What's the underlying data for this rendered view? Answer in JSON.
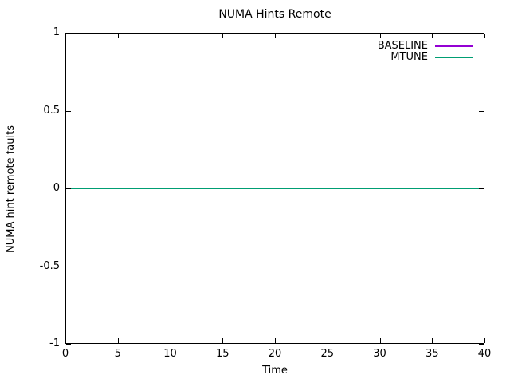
{
  "chart_data": {
    "type": "line",
    "title": "NUMA Hints Remote",
    "xlabel": "Time",
    "ylabel": "NUMA hint remote faults",
    "xlim": [
      0,
      40
    ],
    "ylim": [
      -1,
      1
    ],
    "xticks": [
      0,
      5,
      10,
      15,
      20,
      25,
      30,
      35,
      40
    ],
    "xtick_labels": [
      "0",
      "5",
      "10",
      "15",
      "20",
      "25",
      "30",
      "35",
      "40"
    ],
    "yticks": [
      -1,
      -0.5,
      0,
      0.5,
      1
    ],
    "ytick_labels": [
      "-1",
      "-0.5",
      "0",
      "0.5",
      "1"
    ],
    "grid": false,
    "legend_position": "top-right-inside",
    "axis_color": "#000000",
    "background_color": "#ffffff",
    "series": [
      {
        "name": "BASELINE",
        "color": "#9400d3",
        "x": [
          0,
          39.9
        ],
        "y": [
          0,
          0
        ]
      },
      {
        "name": "MTUNE",
        "color": "#009e73",
        "x": [
          0,
          39.9
        ],
        "y": [
          0,
          0
        ]
      }
    ]
  }
}
